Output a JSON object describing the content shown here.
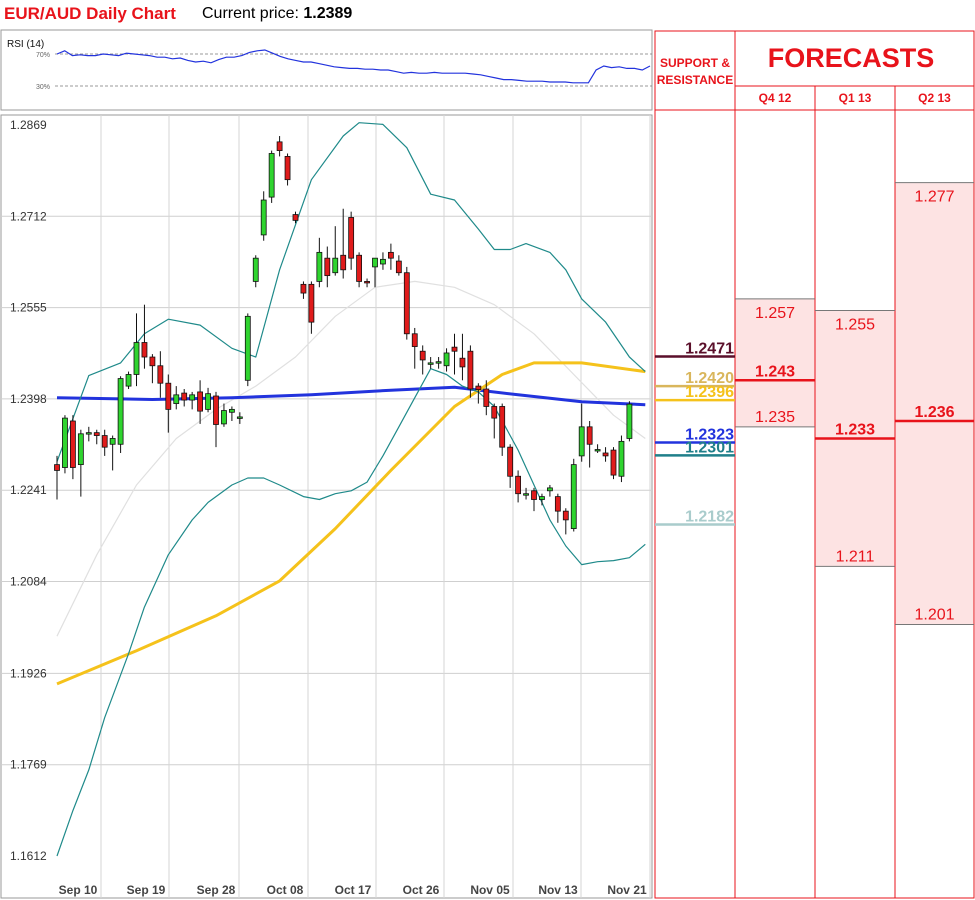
{
  "header": {
    "title": "EUR/AUD Daily Chart",
    "price_label": "Current price:",
    "price_value": "1.2389"
  },
  "rsi": {
    "label": "RSI (14)",
    "levels": [
      "70%",
      "30%"
    ],
    "level_values": [
      70,
      30
    ],
    "values": [
      70,
      74,
      68,
      69,
      68,
      68,
      70,
      69,
      68,
      71,
      70,
      69,
      68,
      66,
      66,
      64,
      65,
      62,
      60,
      61,
      59,
      63,
      66,
      66,
      68,
      72,
      74,
      75,
      71,
      67,
      64,
      62,
      60,
      60,
      58,
      56,
      54,
      53,
      52,
      52,
      51,
      51,
      50,
      50,
      48,
      46,
      47,
      46,
      46,
      47,
      46,
      46,
      46,
      46,
      45,
      44,
      42,
      40,
      38,
      38,
      37,
      36,
      36,
      36,
      35,
      35,
      35,
      34,
      34,
      34,
      50,
      55,
      53,
      54,
      52,
      52,
      50,
      55
    ]
  },
  "colors": {
    "title": "#e8131b",
    "forecast": "#e8131b",
    "bull": "#2fd42f",
    "bear": "#e01b1b",
    "ma_blue": "#2233dd",
    "ma_yellow": "#f5c21b",
    "bollinger": "#1f8a8a",
    "forecast_fill": "#fde3e3"
  },
  "chart_data": {
    "type": "candlestick",
    "title": "EUR/AUD Daily Chart",
    "ylim": [
      1.1612,
      1.2869
    ],
    "yticks": [
      1.2869,
      1.2712,
      1.2555,
      1.2398,
      1.2241,
      1.2084,
      1.1926,
      1.1769,
      1.1612
    ],
    "x_tick_labels": [
      "Sep 10",
      "Sep 19",
      "Sep 28",
      "Oct 08",
      "Oct 17",
      "Oct 26",
      "Nov 05",
      "Nov 13",
      "Nov 21"
    ],
    "grid": true,
    "candles": [
      [
        1.2285,
        1.2275,
        1.2225,
        1.23
      ],
      [
        1.228,
        1.2365,
        1.227,
        1.237
      ],
      [
        1.236,
        1.228,
        1.226,
        1.237
      ],
      [
        1.2285,
        1.2338,
        1.223,
        1.2345
      ],
      [
        1.234,
        1.234,
        1.2325,
        1.235
      ],
      [
        1.234,
        1.2335,
        1.232,
        1.2345
      ],
      [
        1.2335,
        1.2315,
        1.23,
        1.2345
      ],
      [
        1.232,
        1.233,
        1.2275,
        1.2335
      ],
      [
        1.232,
        1.2433,
        1.2305,
        1.2437
      ],
      [
        1.242,
        1.244,
        1.2415,
        1.2445
      ],
      [
        1.244,
        1.2495,
        1.242,
        1.2545
      ],
      [
        1.2495,
        1.247,
        1.245,
        1.256
      ],
      [
        1.247,
        1.2455,
        1.2425,
        1.2475
      ],
      [
        1.2455,
        1.2425,
        1.24,
        1.248
      ],
      [
        1.2425,
        1.238,
        1.234,
        1.244
      ],
      [
        1.239,
        1.2405,
        1.238,
        1.242
      ],
      [
        1.2408,
        1.2396,
        1.2385,
        1.2415
      ],
      [
        1.2396,
        1.2405,
        1.238,
        1.241
      ],
      [
        1.241,
        1.2377,
        1.2355,
        1.243
      ],
      [
        1.238,
        1.2407,
        1.2375,
        1.2417
      ],
      [
        1.2403,
        1.2354,
        1.2315,
        1.241
      ],
      [
        1.2355,
        1.2378,
        1.235,
        1.239
      ],
      [
        1.2375,
        1.238,
        1.236,
        1.2385
      ],
      [
        1.2365,
        1.2367,
        1.2355,
        1.2375
      ],
      [
        1.243,
        1.254,
        1.242,
        1.2545
      ],
      [
        1.26,
        1.264,
        1.259,
        1.2645
      ],
      [
        1.268,
        1.274,
        1.267,
        1.2755
      ],
      [
        1.2745,
        1.282,
        1.2735,
        1.2825
      ],
      [
        1.284,
        1.2825,
        1.2815,
        1.285
      ],
      [
        1.2815,
        1.2775,
        1.2765,
        1.282
      ],
      [
        1.2715,
        1.2705,
        1.27,
        1.272
      ],
      [
        1.2595,
        1.258,
        1.257,
        1.26
      ],
      [
        1.2595,
        1.253,
        1.251,
        1.26
      ],
      [
        1.26,
        1.265,
        1.259,
        1.2675
      ],
      [
        1.264,
        1.261,
        1.259,
        1.266
      ],
      [
        1.2615,
        1.264,
        1.261,
        1.2695
      ],
      [
        1.2645,
        1.262,
        1.2605,
        1.2725
      ],
      [
        1.271,
        1.264,
        1.262,
        1.272
      ],
      [
        1.2645,
        1.26,
        1.259,
        1.265
      ],
      [
        1.26,
        1.2598,
        1.259,
        1.2605
      ],
      [
        1.2625,
        1.264,
        1.259,
        1.264
      ],
      [
        1.263,
        1.2638,
        1.262,
        1.265
      ],
      [
        1.265,
        1.264,
        1.262,
        1.2665
      ],
      [
        1.2635,
        1.2615,
        1.261,
        1.2645
      ],
      [
        1.2615,
        1.251,
        1.25,
        1.2625
      ],
      [
        1.251,
        1.2488,
        1.245,
        1.252
      ],
      [
        1.248,
        1.2465,
        1.244,
        1.249
      ],
      [
        1.246,
        1.246,
        1.245,
        1.247
      ],
      [
        1.246,
        1.2462,
        1.245,
        1.247
      ],
      [
        1.2455,
        1.2477,
        1.2445,
        1.2485
      ],
      [
        1.2487,
        1.248,
        1.244,
        1.251
      ],
      [
        1.2468,
        1.2453,
        1.243,
        1.251
      ],
      [
        1.248,
        1.2415,
        1.24,
        1.249
      ],
      [
        1.242,
        1.2414,
        1.239,
        1.2425
      ],
      [
        1.2415,
        1.2385,
        1.237,
        1.243
      ],
      [
        1.2385,
        1.2365,
        1.233,
        1.239
      ],
      [
        1.2385,
        1.2315,
        1.23,
        1.239
      ],
      [
        1.2315,
        1.2265,
        1.2245,
        1.232
      ],
      [
        1.2265,
        1.2235,
        1.222,
        1.2275
      ],
      [
        1.2235,
        1.2235,
        1.2225,
        1.2245
      ],
      [
        1.224,
        1.2225,
        1.2205,
        1.2245
      ],
      [
        1.2225,
        1.223,
        1.2215,
        1.2235
      ],
      [
        1.224,
        1.2245,
        1.223,
        1.225
      ],
      [
        1.223,
        1.2205,
        1.2185,
        1.2235
      ],
      [
        1.2205,
        1.219,
        1.2165,
        1.221
      ],
      [
        1.2175,
        1.2285,
        1.217,
        1.2295
      ],
      [
        1.23,
        1.235,
        1.229,
        1.239
      ],
      [
        1.235,
        1.232,
        1.228,
        1.236
      ],
      [
        1.231,
        1.2311,
        1.2305,
        1.232
      ],
      [
        1.2305,
        1.23,
        1.229,
        1.2315
      ],
      [
        1.231,
        1.2267,
        1.226,
        1.2315
      ],
      [
        1.2265,
        1.2325,
        1.2255,
        1.2335
      ],
      [
        1.233,
        1.2389,
        1.2325,
        1.2394
      ]
    ],
    "series": [
      {
        "values": [
          [
            0,
            1.24
          ],
          [
            12,
            1.2397
          ],
          [
            22,
            1.24
          ],
          [
            32,
            1.2405
          ],
          [
            42,
            1.2413
          ],
          [
            50,
            1.2418
          ],
          [
            58,
            1.2405
          ],
          [
            66,
            1.2393
          ],
          [
            74,
            1.2388
          ]
        ]
      },
      {
        "values": [
          [
            0,
            1.1908
          ],
          [
            10,
            1.1965
          ],
          [
            20,
            1.2025
          ],
          [
            28,
            1.2085
          ],
          [
            35,
            1.2175
          ],
          [
            42,
            1.2275
          ],
          [
            50,
            1.2385
          ],
          [
            56,
            1.244
          ],
          [
            60,
            1.246
          ],
          [
            66,
            1.246
          ],
          [
            74,
            1.2445
          ]
        ]
      },
      {
        "values": [
          [
            0,
            1.229
          ],
          [
            4,
            1.2438
          ],
          [
            8,
            1.246
          ],
          [
            11,
            1.251
          ],
          [
            14,
            1.2535
          ],
          [
            18,
            1.2525
          ],
          [
            22,
            1.2485
          ],
          [
            25,
            1.247
          ],
          [
            28,
            1.262
          ],
          [
            32,
            1.2775
          ],
          [
            36,
            1.285
          ],
          [
            38,
            1.2873
          ],
          [
            41,
            1.287
          ],
          [
            44,
            1.283
          ],
          [
            47,
            1.275
          ],
          [
            50,
            1.274
          ],
          [
            53,
            1.269
          ],
          [
            55,
            1.2655
          ],
          [
            57,
            1.2655
          ],
          [
            59,
            1.2665
          ],
          [
            62,
            1.265
          ],
          [
            64,
            1.262
          ],
          [
            66,
            1.257
          ],
          [
            69,
            1.253
          ],
          [
            72,
            1.247
          ],
          [
            74,
            1.2445
          ]
        ]
      },
      {
        "values": [
          [
            0,
            1.1612
          ],
          [
            2,
            1.169
          ],
          [
            4,
            1.176
          ],
          [
            6,
            1.185
          ],
          [
            9,
            1.196
          ],
          [
            11,
            1.204
          ],
          [
            14,
            1.213
          ],
          [
            17,
            1.219
          ],
          [
            19,
            1.222
          ],
          [
            22,
            1.225
          ],
          [
            24,
            1.2262
          ],
          [
            26,
            1.2262
          ],
          [
            28,
            1.225
          ],
          [
            31,
            1.223
          ],
          [
            33,
            1.2225
          ],
          [
            35,
            1.2235
          ],
          [
            37,
            1.224
          ],
          [
            39,
            1.2255
          ],
          [
            41,
            1.23
          ],
          [
            43,
            1.235
          ],
          [
            45,
            1.24
          ],
          [
            47,
            1.245
          ],
          [
            49,
            1.244
          ],
          [
            51,
            1.242
          ],
          [
            53,
            1.241
          ],
          [
            55,
            1.2385
          ],
          [
            58,
            1.231
          ],
          [
            60,
            1.225
          ],
          [
            62,
            1.219
          ],
          [
            64,
            1.2145
          ],
          [
            66,
            1.2113
          ],
          [
            68,
            1.2118
          ],
          [
            70,
            1.212
          ],
          [
            72,
            1.2125
          ],
          [
            74,
            1.2148
          ]
        ]
      },
      {
        "values": [
          [
            0,
            1.199
          ],
          [
            5,
            1.213
          ],
          [
            10,
            1.225
          ],
          [
            15,
            1.233
          ],
          [
            20,
            1.238
          ],
          [
            25,
            1.242
          ],
          [
            30,
            1.247
          ],
          [
            35,
            1.254
          ],
          [
            40,
            1.259
          ],
          [
            45,
            1.26
          ],
          [
            50,
            1.259
          ],
          [
            55,
            1.256
          ],
          [
            60,
            1.251
          ],
          [
            65,
            1.244
          ],
          [
            70,
            1.237
          ],
          [
            74,
            1.233
          ]
        ]
      }
    ],
    "support_resistance": {
      "label": "SUPPORT & RESISTANCE",
      "levels": [
        {
          "value": 1.2471,
          "label": "1.2471",
          "color": "#5a0f2a"
        },
        {
          "value": 1.242,
          "label": "1.2420",
          "color": "#d9b65c"
        },
        {
          "value": 1.2396,
          "label": "1.2396",
          "color": "#f5c21b"
        },
        {
          "value": 1.2323,
          "label": "1.2323",
          "color": "#2233dd"
        },
        {
          "value": 1.2301,
          "label": "1.2301",
          "color": "#1f7f8a"
        },
        {
          "value": 1.2182,
          "label": "1.2182",
          "color": "#a9cccc"
        }
      ]
    },
    "forecasts": {
      "title": "FORECASTS",
      "columns": [
        {
          "label": "Q4 12",
          "high": 1.257,
          "mid": 1.243,
          "low": 1.235,
          "high_label": "1.257",
          "mid_label": "1.243",
          "low_label": "1.235"
        },
        {
          "label": "Q1 13",
          "high": 1.255,
          "mid": 1.233,
          "low": 1.211,
          "high_label": "1.255",
          "mid_label": "1.233",
          "low_label": "1.211"
        },
        {
          "label": "Q2 13",
          "high": 1.277,
          "mid": 1.236,
          "low": 1.201,
          "high_label": "1.277",
          "mid_label": "1.236",
          "low_label": "1.201"
        }
      ]
    }
  }
}
